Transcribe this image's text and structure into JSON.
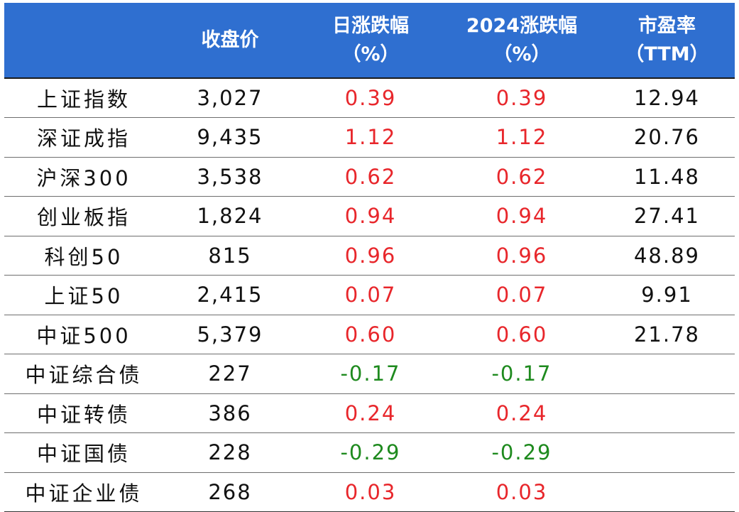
{
  "colors": {
    "header_bg": "#2f6fd0",
    "header_text": "#ffffff",
    "positive": "#e8262b",
    "negative": "#1e8a1e"
  },
  "header": {
    "name": "",
    "close": "收盘价",
    "daily_line1": "日涨跌幅",
    "daily_line2": "（%）",
    "ytd_line1": "2024涨跌幅",
    "ytd_line2": "（%）",
    "pe_line1": "市盈率",
    "pe_line2": "（TTM）"
  },
  "rows": [
    {
      "name": "上证指数",
      "close": "3,027",
      "daily": "0.39",
      "ytd": "0.39",
      "pe": "12.94",
      "trend": "up"
    },
    {
      "name": "深证成指",
      "close": "9,435",
      "daily": "1.12",
      "ytd": "1.12",
      "pe": "20.76",
      "trend": "up"
    },
    {
      "name": "沪深300",
      "close": "3,538",
      "daily": "0.62",
      "ytd": "0.62",
      "pe": "11.48",
      "trend": "up"
    },
    {
      "name": "创业板指",
      "close": "1,824",
      "daily": "0.94",
      "ytd": "0.94",
      "pe": "27.41",
      "trend": "up"
    },
    {
      "name": "科创50",
      "close": "815",
      "daily": "0.96",
      "ytd": "0.96",
      "pe": "48.89",
      "trend": "up"
    },
    {
      "name": "上证50",
      "close": "2,415",
      "daily": "0.07",
      "ytd": "0.07",
      "pe": "9.91",
      "trend": "up"
    },
    {
      "name": "中证500",
      "close": "5,379",
      "daily": "0.60",
      "ytd": "0.60",
      "pe": "21.78",
      "trend": "up"
    },
    {
      "name": "中证综合债",
      "close": "227",
      "daily": "-0.17",
      "ytd": "-0.17",
      "pe": "",
      "trend": "down"
    },
    {
      "name": "中证转债",
      "close": "386",
      "daily": "0.24",
      "ytd": "0.24",
      "pe": "",
      "trend": "up"
    },
    {
      "name": "中证国债",
      "close": "228",
      "daily": "-0.29",
      "ytd": "-0.29",
      "pe": "",
      "trend": "down"
    },
    {
      "name": "中证企业债",
      "close": "268",
      "daily": "0.03",
      "ytd": "0.03",
      "pe": "",
      "trend": "up"
    }
  ]
}
